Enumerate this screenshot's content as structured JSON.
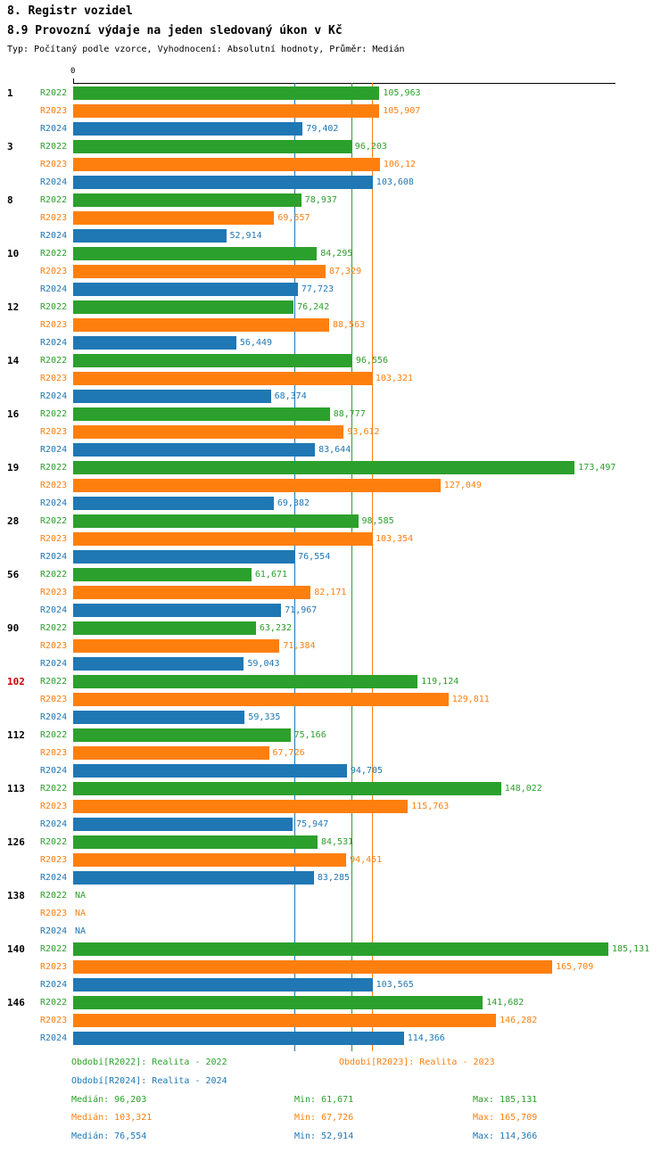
{
  "header": {
    "title": "8. Registr vozidel",
    "subtitle": "8.9 Provozní výdaje na jeden sledovaný úkon v Kč",
    "meta": "Typ: Počítaný podle vzorce, Vyhodnocení: Absolutní hodnoty, Průměr: Medián"
  },
  "colors": {
    "r2022": "#2ca02c",
    "r2023": "#ff7f0e",
    "r2024": "#1f77b4",
    "highlight": "#cc0000",
    "axis": "#000000"
  },
  "chart_data": {
    "type": "bar",
    "orientation": "horizontal",
    "axis": {
      "zero_label": "0",
      "max": 185.131
    },
    "series_names": [
      "R2022",
      "R2023",
      "R2024"
    ],
    "reference_lines": [
      {
        "series": "R2024",
        "value": 76.554,
        "color": "#1f77b4"
      },
      {
        "series": "R2022",
        "value": 96.203,
        "color": "#2ca02c"
      },
      {
        "series": "R2023",
        "value": 103.321,
        "color": "#ff7f0e"
      }
    ],
    "groups": [
      {
        "category": "1",
        "highlight": false,
        "values": [
          {
            "label": "105,963",
            "value": 105.963
          },
          {
            "label": "105,907",
            "value": 105.907
          },
          {
            "label": "79,402",
            "value": 79.402
          }
        ]
      },
      {
        "category": "3",
        "highlight": false,
        "values": [
          {
            "label": "96,203",
            "value": 96.203
          },
          {
            "label": "106,12",
            "value": 106.12
          },
          {
            "label": "103,608",
            "value": 103.608
          }
        ]
      },
      {
        "category": "8",
        "highlight": false,
        "values": [
          {
            "label": "78,937",
            "value": 78.937
          },
          {
            "label": "69,557",
            "value": 69.557
          },
          {
            "label": "52,914",
            "value": 52.914
          }
        ]
      },
      {
        "category": "10",
        "highlight": false,
        "values": [
          {
            "label": "84,295",
            "value": 84.295
          },
          {
            "label": "87,329",
            "value": 87.329
          },
          {
            "label": "77,723",
            "value": 77.723
          }
        ]
      },
      {
        "category": "12",
        "highlight": false,
        "values": [
          {
            "label": "76,242",
            "value": 76.242
          },
          {
            "label": "88,563",
            "value": 88.563
          },
          {
            "label": "56,449",
            "value": 56.449
          }
        ]
      },
      {
        "category": "14",
        "highlight": false,
        "values": [
          {
            "label": "96,556",
            "value": 96.556
          },
          {
            "label": "103,321",
            "value": 103.321
          },
          {
            "label": "68,374",
            "value": 68.374
          }
        ]
      },
      {
        "category": "16",
        "highlight": false,
        "values": [
          {
            "label": "88,777",
            "value": 88.777
          },
          {
            "label": "93,612",
            "value": 93.612
          },
          {
            "label": "83,644",
            "value": 83.644
          }
        ]
      },
      {
        "category": "19",
        "highlight": false,
        "values": [
          {
            "label": "173,497",
            "value": 173.497
          },
          {
            "label": "127,049",
            "value": 127.049
          },
          {
            "label": "69,382",
            "value": 69.382
          }
        ]
      },
      {
        "category": "28",
        "highlight": false,
        "values": [
          {
            "label": "98,585",
            "value": 98.585
          },
          {
            "label": "103,354",
            "value": 103.354
          },
          {
            "label": "76,554",
            "value": 76.554
          }
        ]
      },
      {
        "category": "56",
        "highlight": false,
        "values": [
          {
            "label": "61,671",
            "value": 61.671
          },
          {
            "label": "82,171",
            "value": 82.171
          },
          {
            "label": "71,967",
            "value": 71.967
          }
        ]
      },
      {
        "category": "90",
        "highlight": false,
        "values": [
          {
            "label": "63,232",
            "value": 63.232
          },
          {
            "label": "71,384",
            "value": 71.384
          },
          {
            "label": "59,043",
            "value": 59.043
          }
        ]
      },
      {
        "category": "102",
        "highlight": true,
        "values": [
          {
            "label": "119,124",
            "value": 119.124
          },
          {
            "label": "129,811",
            "value": 129.811
          },
          {
            "label": "59,335",
            "value": 59.335
          }
        ]
      },
      {
        "category": "112",
        "highlight": false,
        "values": [
          {
            "label": "75,166",
            "value": 75.166
          },
          {
            "label": "67,726",
            "value": 67.726
          },
          {
            "label": "94,705",
            "value": 94.705
          }
        ]
      },
      {
        "category": "113",
        "highlight": false,
        "values": [
          {
            "label": "148,022",
            "value": 148.022
          },
          {
            "label": "115,763",
            "value": 115.763
          },
          {
            "label": "75,947",
            "value": 75.947
          }
        ]
      },
      {
        "category": "126",
        "highlight": false,
        "values": [
          {
            "label": "84,531",
            "value": 84.531
          },
          {
            "label": "94,451",
            "value": 94.451
          },
          {
            "label": "83,285",
            "value": 83.285
          }
        ]
      },
      {
        "category": "138",
        "highlight": false,
        "values": [
          {
            "label": "NA",
            "value": null
          },
          {
            "label": "NA",
            "value": null
          },
          {
            "label": "NA",
            "value": null
          }
        ]
      },
      {
        "category": "140",
        "highlight": false,
        "values": [
          {
            "label": "185,131",
            "value": 185.131
          },
          {
            "label": "165,709",
            "value": 165.709
          },
          {
            "label": "103,565",
            "value": 103.565
          }
        ]
      },
      {
        "category": "146",
        "highlight": false,
        "values": [
          {
            "label": "141,682",
            "value": 141.682
          },
          {
            "label": "146,282",
            "value": 146.282
          },
          {
            "label": "114,366",
            "value": 114.366
          }
        ]
      }
    ],
    "legend": [
      {
        "text": "Období[R2022]: Realita - 2022"
      },
      {
        "text": "Období[R2023]: Realita - 2023"
      },
      {
        "text": "Období[R2024]: Realita - 2024"
      }
    ],
    "stats": [
      {
        "median": "Medián: 96,203",
        "min": "Min: 61,671",
        "max": "Max: 185,131"
      },
      {
        "median": "Medián: 103,321",
        "min": "Min: 67,726",
        "max": "Max: 165,709"
      },
      {
        "median": "Medián: 76,554",
        "min": "Min: 52,914",
        "max": "Max: 114,366"
      }
    ]
  }
}
